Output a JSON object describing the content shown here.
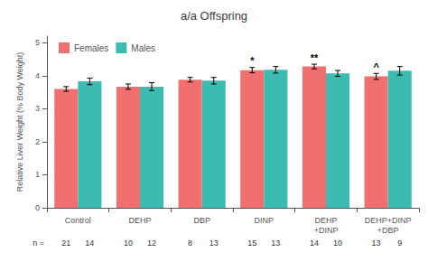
{
  "chart_data": {
    "type": "bar",
    "title": "a/a Offspring",
    "ylabel": "Relative Liver Weight (% Body Weight)",
    "categories": [
      "Control",
      "DEHP",
      "DBP",
      "DINP",
      "DEHP\n+DINP",
      "DEHP+DINP\n+DBP"
    ],
    "series": [
      {
        "name": "Females",
        "color": "#F07070",
        "values": [
          3.6,
          3.67,
          3.88,
          4.17,
          4.28,
          3.98
        ],
        "errors": [
          0.07,
          0.08,
          0.07,
          0.08,
          0.07,
          0.09
        ],
        "n": [
          21,
          10,
          8,
          15,
          14,
          13
        ]
      },
      {
        "name": "Males",
        "color": "#3CBCB0",
        "values": [
          3.83,
          3.67,
          3.85,
          4.18,
          4.07,
          4.15
        ],
        "errors": [
          0.1,
          0.12,
          0.1,
          0.1,
          0.09,
          0.13
        ],
        "n": [
          14,
          12,
          13,
          13,
          10,
          9
        ]
      }
    ],
    "n_label": "n =",
    "annotations": [
      {
        "category": "DINP",
        "series": "Females",
        "text": "*"
      },
      {
        "category": "DEHP\n+DINP",
        "series": "Females",
        "text": "**"
      },
      {
        "category": "DEHP+DINP\n+DBP",
        "series": "Females",
        "text": "^"
      }
    ],
    "ylim": [
      0,
      5.2
    ],
    "yticks": [
      0,
      1,
      2,
      3,
      4,
      5
    ],
    "grid": false,
    "legend": "upper left"
  }
}
